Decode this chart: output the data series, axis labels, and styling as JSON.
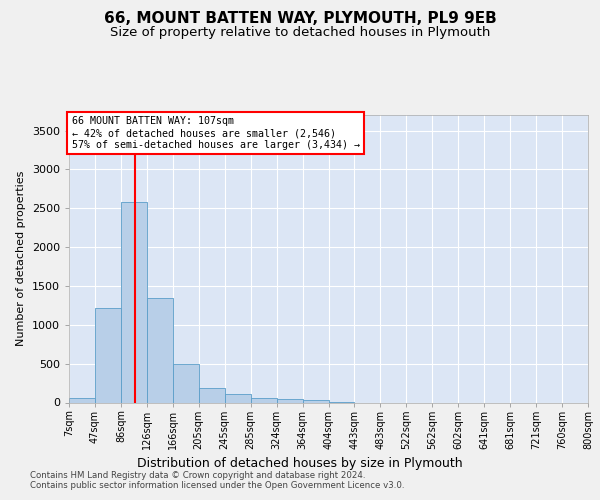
{
  "title": "66, MOUNT BATTEN WAY, PLYMOUTH, PL9 9EB",
  "subtitle": "Size of property relative to detached houses in Plymouth",
  "xlabel": "Distribution of detached houses by size in Plymouth",
  "ylabel": "Number of detached properties",
  "bar_color": "#b8cfe8",
  "bar_edge_color": "#5a9ec9",
  "plot_bg_color": "#dce6f5",
  "grid_color": "#ffffff",
  "fig_bg_color": "#f0f0f0",
  "categories": [
    "7sqm",
    "47sqm",
    "86sqm",
    "126sqm",
    "166sqm",
    "205sqm",
    "245sqm",
    "285sqm",
    "324sqm",
    "364sqm",
    "404sqm",
    "443sqm",
    "483sqm",
    "522sqm",
    "562sqm",
    "602sqm",
    "641sqm",
    "681sqm",
    "721sqm",
    "760sqm",
    "800sqm"
  ],
  "bar_heights": [
    55,
    1220,
    2580,
    1340,
    490,
    190,
    110,
    55,
    50,
    30,
    5,
    0,
    0,
    0,
    0,
    0,
    0,
    0,
    0,
    0
  ],
  "red_line_x": 2.525,
  "annotation_line1": "66 MOUNT BATTEN WAY: 107sqm",
  "annotation_line2": "← 42% of detached houses are smaller (2,546)",
  "annotation_line3": "57% of semi-detached houses are larger (3,434) →",
  "ylim": [
    0,
    3700
  ],
  "yticks": [
    0,
    500,
    1000,
    1500,
    2000,
    2500,
    3000,
    3500
  ],
  "footer_line1": "Contains HM Land Registry data © Crown copyright and database right 2024.",
  "footer_line2": "Contains public sector information licensed under the Open Government Licence v3.0."
}
